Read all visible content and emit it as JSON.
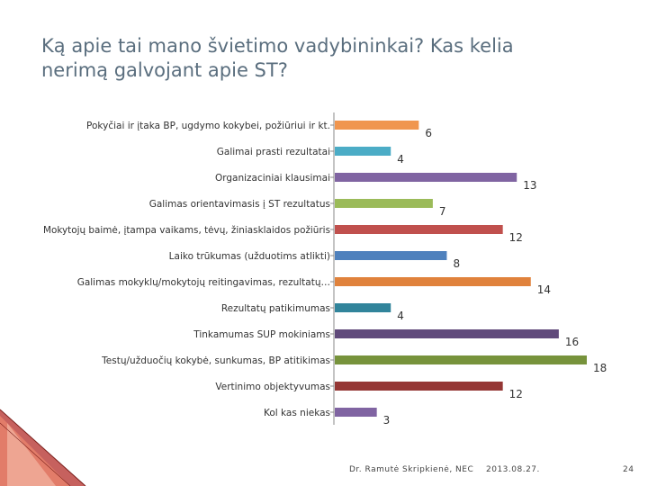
{
  "title_line1": "Ką apie tai mano švietimo vadybininkai? Kas kelia",
  "title_line2": "nerimą galvojant apie ST?",
  "footer": {
    "author": "Dr. Ramutė Skripkienė, NEC",
    "date": "2013.08.27.",
    "page": "24"
  },
  "chart_data": {
    "type": "bar",
    "orientation": "horizontal",
    "categories": [
      "Pokyčiai ir įtaka BP, ugdymo kokybei, požiūriui ir kt.",
      "Galimai prasti rezultatai",
      "Organizaciniai klausimai",
      "Galimas orientavimasis į ST rezultatus",
      "Mokytojų baimė, įtampa vaikams, tėvų, žiniasklaidos požiūris",
      "Laiko trūkumas (užduotims atlikti)",
      "Galimas mokyklų/mokytojų reitingavimas, rezultatų…",
      "Rezultatų patikimumas",
      "Tinkamumas SUP mokiniams",
      "Testų/užduočių kokybė, sunkumas, BP atitikimas",
      "Vertinimo objektyvumas",
      "Kol kas niekas"
    ],
    "values": [
      6,
      4,
      13,
      7,
      12,
      8,
      14,
      4,
      16,
      18,
      12,
      3
    ],
    "colors": [
      "#f0964f",
      "#4bacc6",
      "#8064a2",
      "#9bbb59",
      "#c0504d",
      "#4f81bd",
      "#e0823c",
      "#31849b",
      "#604a7b",
      "#77933c",
      "#953735",
      "#8064a2"
    ],
    "xlim": [
      0,
      18
    ],
    "data_labels": true,
    "legend": "none",
    "grid": false
  }
}
